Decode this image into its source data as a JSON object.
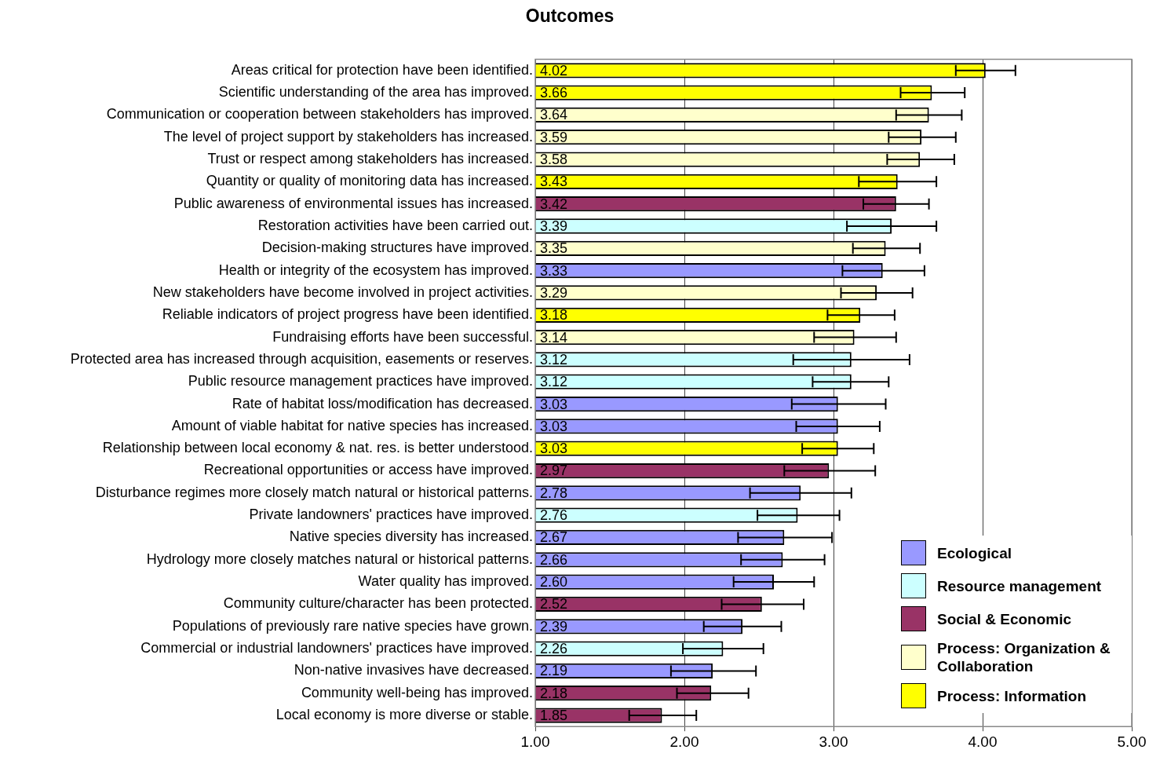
{
  "chart_data": {
    "type": "bar",
    "orientation": "horizontal",
    "stacked": true,
    "title": "Outcomes",
    "categories": [
      "Areas critical for protection have been identified.",
      "Scientific understanding of the area has improved.",
      "Communication or cooperation between stakeholders has improved.",
      "The level of project support by stakeholders has increased.",
      "Trust or respect among stakeholders has increased.",
      "Quantity or quality of monitoring data has increased.",
      "Public awareness of environmental issues has increased.",
      "Restoration activities have been carried out.",
      "Decision-making structures have improved.",
      "Health or integrity of the ecosystem has improved.",
      "New stakeholders have become involved in project activities.",
      "Reliable indicators of project progress have been identified.",
      "Fundraising efforts have been successful.",
      "Protected area has increased through acquisition, easements or reserves.",
      "Public resource management practices have improved.",
      "Rate of habitat loss/modification has decreased.",
      "Amount of viable habitat for native species has increased.",
      "Relationship between local economy & nat. res. is better understood.",
      "Recreational opportunities or access have improved.",
      "Disturbance regimes more closely match natural or historical patterns.",
      "Private landowners' practices have improved.",
      "Native species diversity has increased.",
      "Hydrology more closely matches natural or historical patterns.",
      "Water quality has improved.",
      "Community culture/character has been protected.",
      "Populations of previously rare native species have grown.",
      "Commercial or industrial landowners' practices have improved.",
      "Non-native invasives have decreased.",
      "Community well-being has improved.",
      "Local economy is more diverse or stable."
    ],
    "series": [
      {
        "name": "Ecological",
        "color": "#9999ff",
        "values": [
          null,
          null,
          null,
          null,
          null,
          null,
          null,
          null,
          null,
          3.33,
          null,
          null,
          null,
          null,
          null,
          3.03,
          3.03,
          null,
          null,
          2.78,
          null,
          2.67,
          2.66,
          2.6,
          null,
          2.39,
          null,
          2.19,
          null,
          null
        ],
        "value_labels": [
          null,
          null,
          null,
          null,
          null,
          null,
          null,
          null,
          null,
          "3.33",
          null,
          null,
          null,
          null,
          null,
          "3.03",
          "3.03",
          null,
          null,
          "2.78",
          null,
          "2.67",
          "2.66",
          "2.60",
          null,
          "2.39",
          null,
          "2.19",
          null,
          null
        ],
        "errors": [
          null,
          null,
          null,
          null,
          null,
          null,
          null,
          null,
          null,
          [
            3.06,
            3.61
          ],
          null,
          null,
          null,
          null,
          null,
          [
            2.72,
            3.35
          ],
          [
            2.75,
            3.31
          ],
          null,
          null,
          [
            2.44,
            3.12
          ],
          null,
          [
            2.36,
            2.99
          ],
          [
            2.38,
            2.94
          ],
          [
            2.33,
            2.87
          ],
          null,
          [
            2.13,
            2.65
          ],
          null,
          [
            1.91,
            2.48
          ],
          null,
          null
        ]
      },
      {
        "name": "Resource management",
        "color": "#ccffff",
        "values": [
          null,
          null,
          null,
          null,
          null,
          null,
          null,
          3.39,
          null,
          null,
          null,
          null,
          null,
          3.12,
          3.12,
          null,
          null,
          null,
          null,
          null,
          2.76,
          null,
          null,
          null,
          null,
          null,
          2.26,
          null,
          null,
          null
        ],
        "value_labels": [
          null,
          null,
          null,
          null,
          null,
          null,
          null,
          "3.39",
          null,
          null,
          null,
          null,
          null,
          "3.12",
          "3.12",
          null,
          null,
          null,
          null,
          null,
          "2.76",
          null,
          null,
          null,
          null,
          null,
          "2.26",
          null,
          null,
          null
        ],
        "errors": [
          null,
          null,
          null,
          null,
          null,
          null,
          null,
          [
            3.09,
            3.69
          ],
          null,
          null,
          null,
          null,
          null,
          [
            2.73,
            3.51
          ],
          [
            2.86,
            3.37
          ],
          null,
          null,
          null,
          null,
          null,
          [
            2.49,
            3.04
          ],
          null,
          null,
          null,
          null,
          null,
          [
            1.99,
            2.53
          ],
          null,
          null,
          null
        ]
      },
      {
        "name": "Social & Economic",
        "color": "#993366",
        "values": [
          null,
          null,
          null,
          null,
          null,
          null,
          3.42,
          null,
          null,
          null,
          null,
          null,
          null,
          null,
          null,
          null,
          null,
          null,
          2.97,
          null,
          null,
          null,
          null,
          null,
          2.52,
          null,
          null,
          null,
          2.18,
          1.85
        ],
        "value_labels": [
          null,
          null,
          null,
          null,
          null,
          null,
          "3.42",
          null,
          null,
          null,
          null,
          null,
          null,
          null,
          null,
          null,
          null,
          null,
          "2.97",
          null,
          null,
          null,
          null,
          null,
          "2.52",
          null,
          null,
          null,
          "2.18",
          "1.85"
        ],
        "errors": [
          null,
          null,
          null,
          null,
          null,
          null,
          [
            3.2,
            3.64
          ],
          null,
          null,
          null,
          null,
          null,
          null,
          null,
          null,
          null,
          null,
          null,
          [
            2.67,
            3.28
          ],
          null,
          null,
          null,
          null,
          null,
          [
            2.25,
            2.8
          ],
          null,
          null,
          null,
          [
            1.95,
            2.43
          ],
          [
            1.63,
            2.08
          ]
        ]
      },
      {
        "name": "Process: Organization & Collaboration",
        "color": "#ffffcc",
        "values": [
          null,
          null,
          3.64,
          3.59,
          3.58,
          null,
          null,
          null,
          3.35,
          null,
          3.29,
          null,
          3.14,
          null,
          null,
          null,
          null,
          null,
          null,
          null,
          null,
          null,
          null,
          null,
          null,
          null,
          null,
          null,
          null,
          null
        ],
        "value_labels": [
          null,
          null,
          "3.64",
          "3.59",
          "3.58",
          null,
          null,
          null,
          "3.35",
          null,
          "3.29",
          null,
          "3.14",
          null,
          null,
          null,
          null,
          null,
          null,
          null,
          null,
          null,
          null,
          null,
          null,
          null,
          null,
          null,
          null,
          null
        ],
        "errors": [
          null,
          null,
          [
            3.42,
            3.86
          ],
          [
            3.37,
            3.82
          ],
          [
            3.36,
            3.81
          ],
          null,
          null,
          null,
          [
            3.13,
            3.58
          ],
          null,
          [
            3.05,
            3.53
          ],
          null,
          [
            2.87,
            3.42
          ],
          null,
          null,
          null,
          null,
          null,
          null,
          null,
          null,
          null,
          null,
          null,
          null,
          null,
          null,
          null,
          null,
          null
        ]
      },
      {
        "name": "Process: Information",
        "color": "#ffff00",
        "values": [
          4.02,
          3.66,
          null,
          null,
          null,
          3.43,
          null,
          null,
          null,
          null,
          null,
          3.18,
          null,
          null,
          null,
          null,
          null,
          3.03,
          null,
          null,
          null,
          null,
          null,
          null,
          null,
          null,
          null,
          null,
          null,
          null
        ],
        "value_labels": [
          "4.02",
          "3.66",
          null,
          null,
          null,
          "3.43",
          null,
          null,
          null,
          null,
          null,
          "3.18",
          null,
          null,
          null,
          null,
          null,
          "3.03",
          null,
          null,
          null,
          null,
          null,
          null,
          null,
          null,
          null,
          null,
          null,
          null
        ],
        "errors": [
          [
            3.82,
            4.22
          ],
          [
            3.45,
            3.88
          ],
          null,
          null,
          null,
          [
            3.17,
            3.69
          ],
          null,
          null,
          null,
          null,
          null,
          [
            2.96,
            3.41
          ],
          null,
          null,
          null,
          null,
          null,
          [
            2.79,
            3.27
          ],
          null,
          null,
          null,
          null,
          null,
          null,
          null,
          null,
          null,
          null,
          null,
          null
        ]
      }
    ],
    "xlim": [
      1,
      5
    ],
    "xticks": [
      {
        "value": 1,
        "label": "1.00"
      },
      {
        "value": 2,
        "label": "2.00"
      },
      {
        "value": 3,
        "label": "3.00"
      },
      {
        "value": 4,
        "label": "4.00"
      },
      {
        "value": 5,
        "label": "5.00"
      }
    ],
    "grid": "x",
    "legend": "bottom right"
  }
}
